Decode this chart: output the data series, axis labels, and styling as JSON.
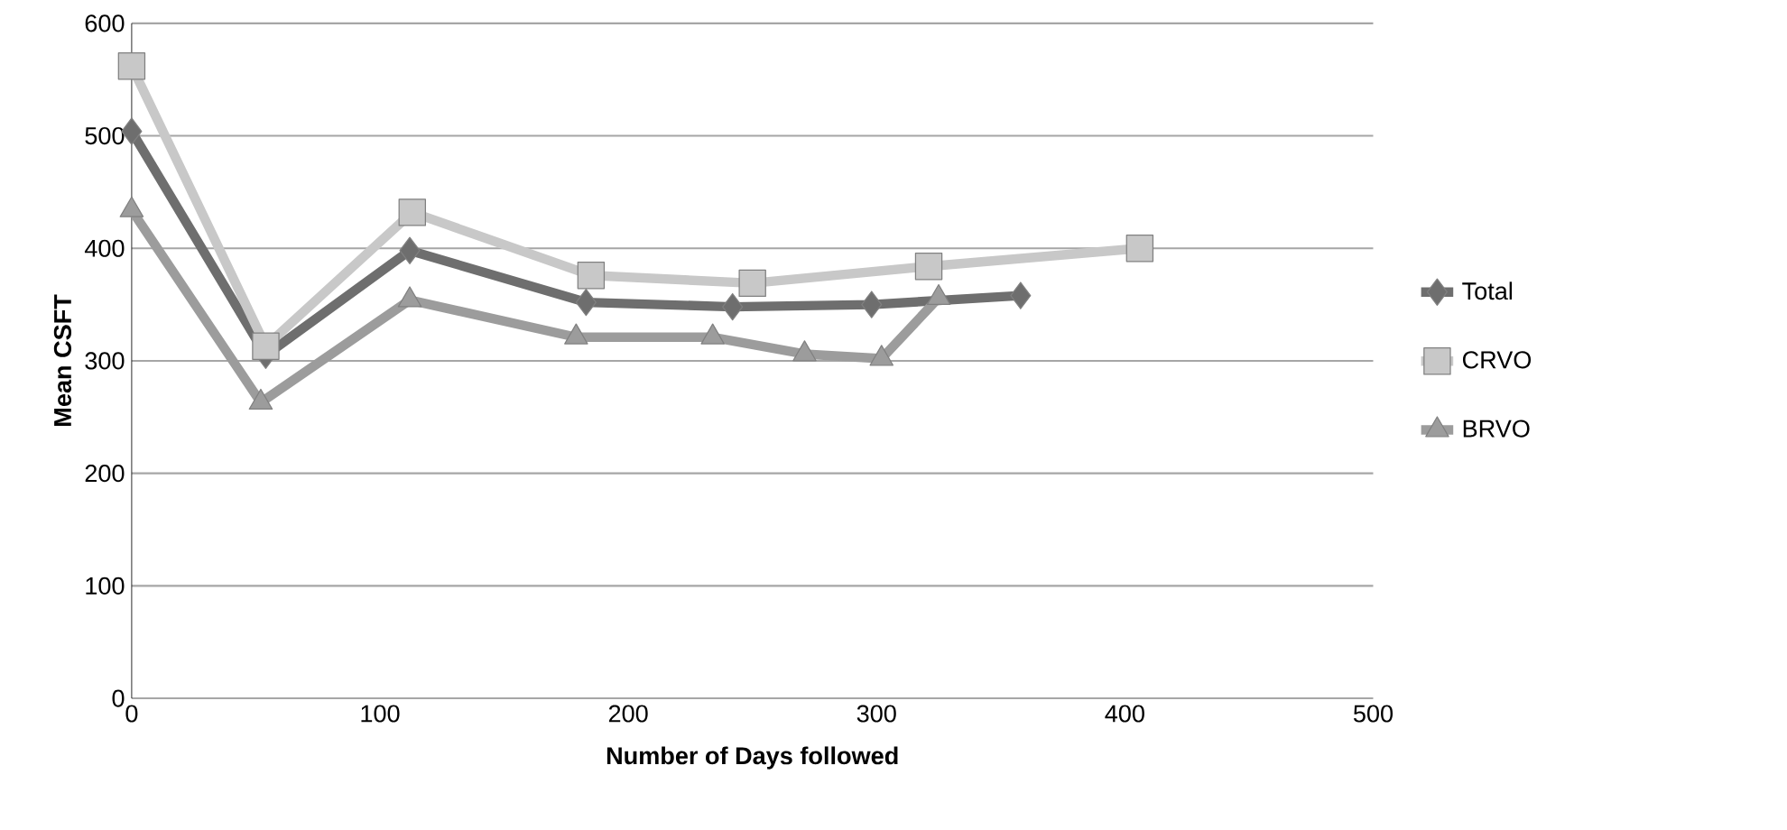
{
  "chart_data": {
    "type": "line",
    "xlabel": "Number of Days followed",
    "ylabel": "Mean CSFT",
    "xlim": [
      0,
      500
    ],
    "ylim": [
      0,
      600
    ],
    "xticks": [
      0,
      100,
      200,
      300,
      400,
      500
    ],
    "yticks": [
      0,
      100,
      200,
      300,
      400,
      500,
      600
    ],
    "grid": "y",
    "legend": "right",
    "series": [
      {
        "name": "Total",
        "color": "#6e6e6e",
        "marker": "diamond",
        "x": [
          0,
          54,
          112,
          183,
          242,
          298,
          358
        ],
        "values": [
          504,
          305,
          398,
          352,
          348,
          350,
          358
        ]
      },
      {
        "name": "CRVO",
        "color": "#c8c8c8",
        "marker": "square",
        "x": [
          0,
          54,
          113,
          185,
          250,
          321,
          406
        ],
        "values": [
          562,
          313,
          432,
          376,
          369,
          384,
          400
        ]
      },
      {
        "name": "BRVO",
        "color": "#9c9c9c",
        "marker": "triangle",
        "x": [
          0,
          52,
          112,
          179,
          234,
          271,
          302,
          325
        ],
        "values": [
          434,
          263,
          354,
          321,
          321,
          306,
          302,
          356
        ]
      }
    ]
  }
}
